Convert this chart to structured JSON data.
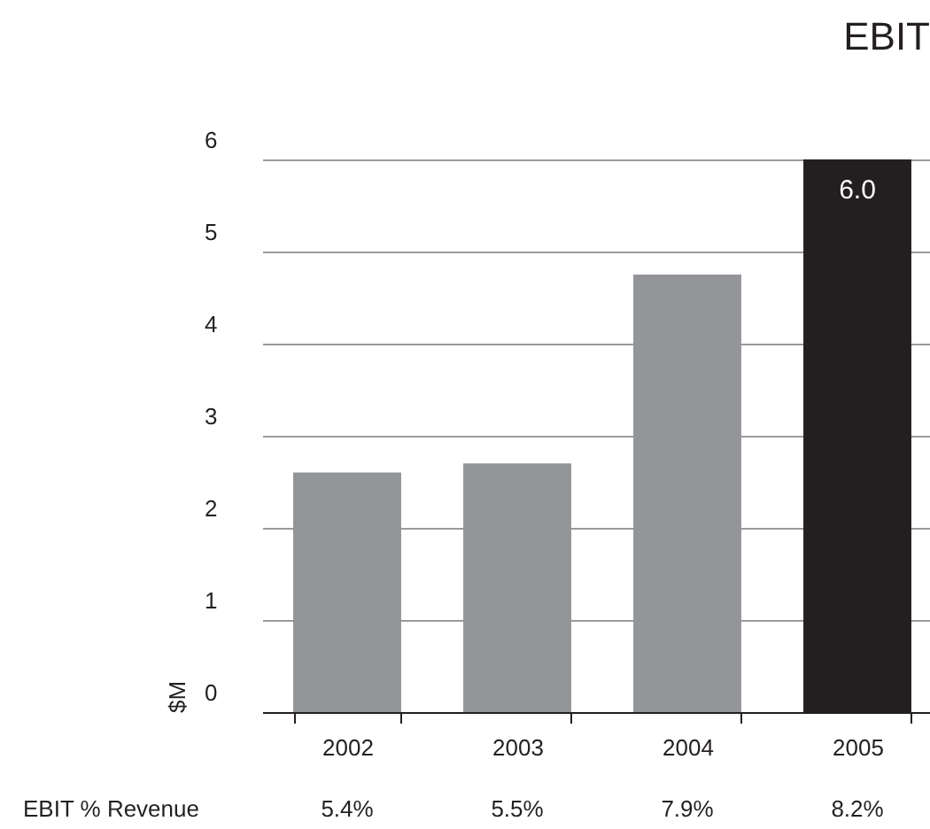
{
  "chart_data": {
    "type": "bar",
    "title": "EBIT",
    "ylabel": "$M",
    "categories": [
      "2002",
      "2003",
      "2004",
      "2005"
    ],
    "values": [
      2.6,
      2.7,
      4.75,
      6.0
    ],
    "colors": [
      "#939598",
      "#939598",
      "#939598",
      "#231f20"
    ],
    "value_labels": [
      null,
      null,
      null,
      "6.0"
    ],
    "ylim": [
      0,
      6
    ],
    "yticks": [
      0,
      1,
      2,
      3,
      4,
      5,
      6
    ],
    "grid": "y",
    "annotations": [
      "EBIT % Revenue",
      "5.4%",
      "5.5%",
      "7.9%",
      "8.2%"
    ]
  }
}
